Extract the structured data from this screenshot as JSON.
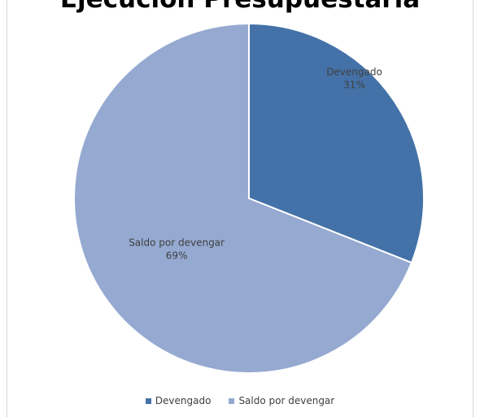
{
  "chart_data": {
    "type": "pie",
    "title": "Ejecución Presupuestaria",
    "categories": [
      "Devengado",
      "Saldo por devengar"
    ],
    "values": [
      31,
      69
    ],
    "labels": [
      "31%",
      "69%"
    ],
    "colors": [
      "#4472a8",
      "#95a9d1"
    ],
    "legend_position": "bottom"
  }
}
